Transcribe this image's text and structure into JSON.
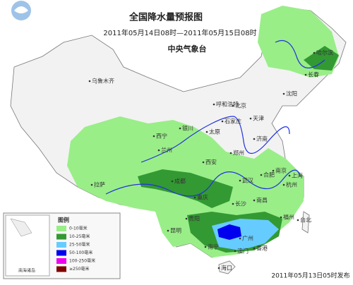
{
  "header": {
    "title": "全国降水量预报图",
    "period": "2011年05月14日08时—2011年05月15日08时",
    "issuer": "中央气象台"
  },
  "legend": {
    "title": "图例",
    "items": [
      {
        "label": "0-10毫米",
        "color": "#99ee88"
      },
      {
        "label": "10-25毫米",
        "color": "#339933"
      },
      {
        "label": "25-50毫米",
        "color": "#66ccff"
      },
      {
        "label": "50-100毫米",
        "color": "#0000ee"
      },
      {
        "label": "100-250毫米",
        "color": "#ee00ee"
      },
      {
        "label": "≥250毫米",
        "color": "#800000"
      }
    ]
  },
  "inset_label": "南海诸岛",
  "cities": [
    "哈尔滨",
    "长春",
    "沈阳",
    "乌鲁木齐",
    "呼和浩特",
    "北京",
    "天津",
    "石家庄",
    "太原",
    "银川",
    "济南",
    "西宁",
    "兰州",
    "郑州",
    "西安",
    "合肥",
    "南京",
    "上海",
    "拉萨",
    "成都",
    "武汉",
    "杭州",
    "重庆",
    "长沙",
    "南昌",
    "福州",
    "台北",
    "贵阳",
    "昆明",
    "广州",
    "南宁",
    "香港",
    "澳门",
    "海口"
  ],
  "footer": "2011年05月13日05时发布"
}
